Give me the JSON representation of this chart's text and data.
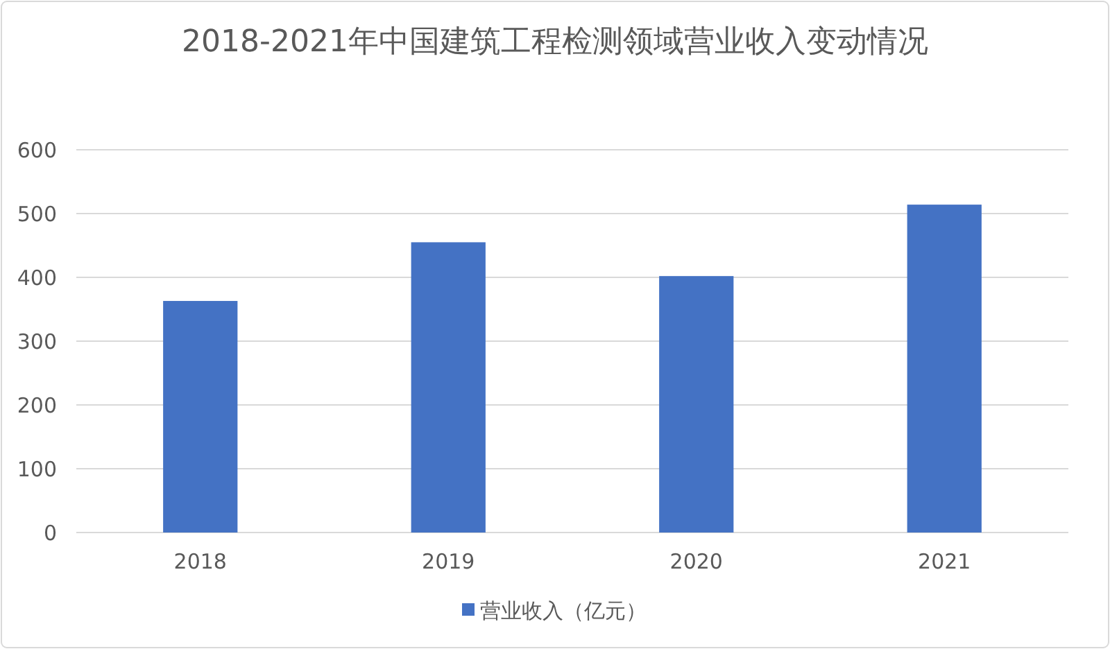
{
  "chart_data": {
    "type": "bar",
    "title": "2018-2021年中国建筑工程检测领域营业收入变动情况",
    "categories": [
      "2018",
      "2019",
      "2020",
      "2021"
    ],
    "series": [
      {
        "name": "营业收入（亿元）",
        "color": "#4472c4",
        "values": [
          363,
          455,
          402,
          514
        ]
      }
    ],
    "ylim": [
      0,
      600
    ],
    "yticks": [
      0,
      100,
      200,
      300,
      400,
      500,
      600
    ],
    "grid": "y",
    "legend": "bottom"
  }
}
